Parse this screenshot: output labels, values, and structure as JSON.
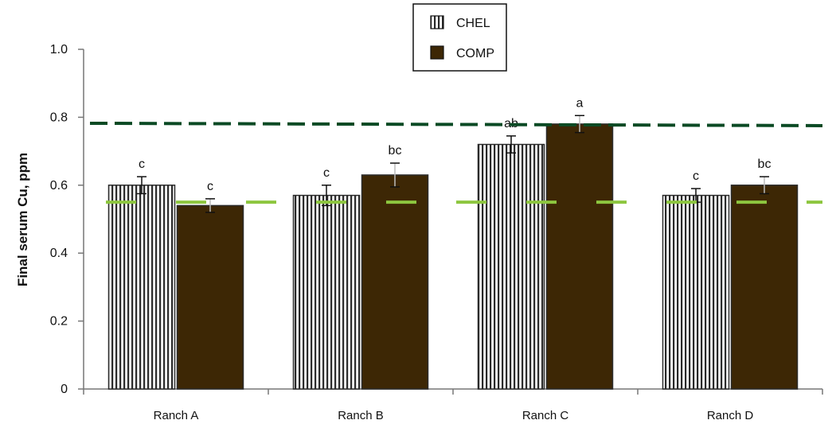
{
  "chart_data": {
    "type": "bar",
    "title": "",
    "xlabel": "",
    "ylabel": "Final serum Cu, ppm",
    "ylim": [
      0,
      1.0
    ],
    "yticks": [
      "0",
      "0.2",
      "0.4",
      "0.6",
      "0.8",
      "1.0"
    ],
    "ytick_values": [
      0,
      0.2,
      0.4,
      0.6,
      0.8,
      1.0
    ],
    "categories": [
      "Ranch A",
      "Ranch B",
      "Ranch C",
      "Ranch D"
    ],
    "series": [
      {
        "name": "CHEL",
        "values": [
          0.6,
          0.57,
          0.72,
          0.57
        ],
        "errors": [
          0.025,
          0.03,
          0.025,
          0.02
        ],
        "labels": [
          "c",
          "c",
          "ab",
          "c"
        ],
        "color": "#ffffff",
        "pattern": "vertical-stripes"
      },
      {
        "name": "COMP",
        "values": [
          0.54,
          0.63,
          0.78,
          0.6
        ],
        "errors": [
          0.02,
          0.035,
          0.025,
          0.025
        ],
        "labels": [
          "c",
          "bc",
          "a",
          "bc"
        ],
        "color": "#3d2705",
        "pattern": "solid"
      }
    ],
    "reference_lines": [
      {
        "value": 0.78,
        "color": "#0b4a24",
        "style": "dashed"
      },
      {
        "value": 0.55,
        "color": "#8dc63f",
        "style": "dashed"
      }
    ],
    "legend_position": "top-center",
    "grid": false
  }
}
